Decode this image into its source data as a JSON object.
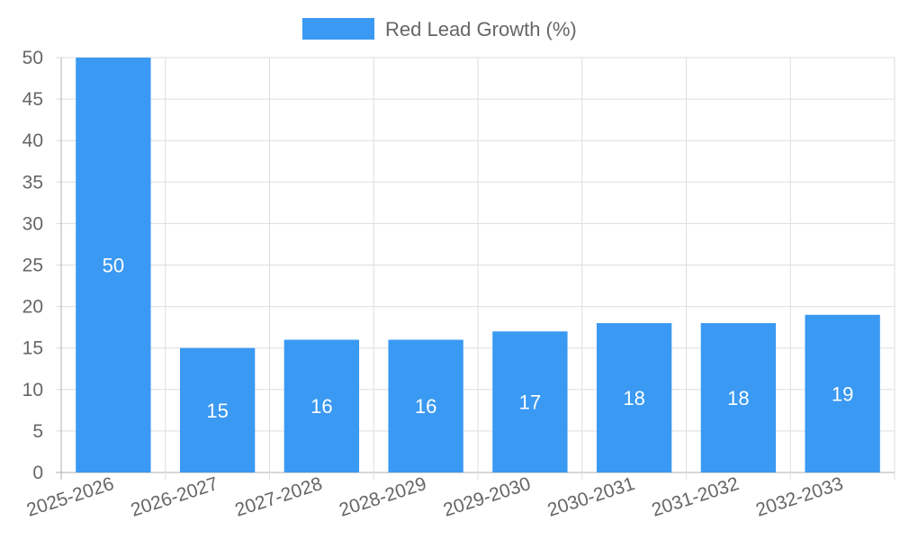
{
  "chart_data": {
    "type": "bar",
    "categories": [
      "2025-2026",
      "2026-2027",
      "2027-2028",
      "2028-2029",
      "2029-2030",
      "2030-2031",
      "2031-2032",
      "2032-2033"
    ],
    "series": [
      {
        "name": "Red Lead Growth (%)",
        "values": [
          50,
          15,
          16,
          16,
          17,
          18,
          18,
          19
        ],
        "color": "#3a99f2"
      }
    ],
    "ylim": [
      0,
      50
    ],
    "yticks": [
      0,
      5,
      10,
      15,
      20,
      25,
      30,
      35,
      40,
      45,
      50
    ],
    "grid": true,
    "legend_position": "top-center",
    "data_labels": true
  }
}
